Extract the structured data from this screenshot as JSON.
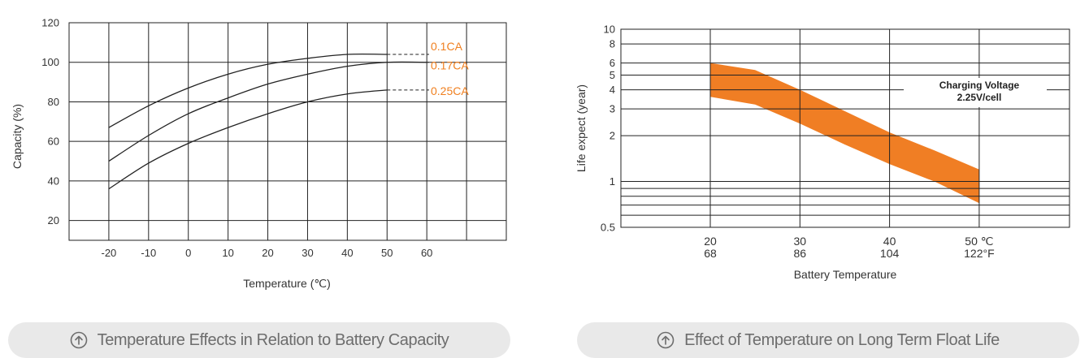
{
  "charts": [
    {
      "type": "line",
      "title": "",
      "xlabel": "Temperature (℃)",
      "ylabel": "Capacity (%)",
      "x_ticks": [
        -20,
        -10,
        0,
        10,
        20,
        30,
        40,
        50,
        60
      ],
      "y_ticks": [
        20,
        40,
        60,
        80,
        100,
        120
      ],
      "xlim": [
        -30,
        80
      ],
      "ylim": [
        10,
        120
      ],
      "grid": true,
      "series": [
        {
          "name": "0.1CA",
          "x": [
            -20,
            -10,
            0,
            10,
            20,
            30,
            40,
            50
          ],
          "values": [
            67,
            78,
            87,
            94,
            99,
            102,
            104,
            104
          ]
        },
        {
          "name": "0.17CA",
          "x": [
            -20,
            -10,
            0,
            10,
            20,
            30,
            40,
            50,
            60
          ],
          "values": [
            50,
            63,
            74,
            82,
            89,
            94,
            98,
            100,
            100
          ]
        },
        {
          "name": "0.25CA",
          "x": [
            -20,
            -10,
            0,
            10,
            20,
            30,
            40,
            50
          ],
          "values": [
            36,
            49,
            59,
            67,
            74,
            80,
            84,
            86
          ]
        }
      ],
      "label_color": "#f08020"
    },
    {
      "type": "area",
      "title": "",
      "xlabel": "Battery Temperature",
      "ylabel": "Life expect (year)",
      "y_scale": "log",
      "x_ticks": [
        {
          "c": "20",
          "f": "68"
        },
        {
          "c": "30",
          "f": "86"
        },
        {
          "c": "40",
          "f": "104"
        },
        {
          "c": "50 ℃",
          "f": "122°F"
        }
      ],
      "y_ticks": [
        "0.5",
        "1",
        "2",
        "3",
        "4",
        "5",
        "6",
        "8",
        "10"
      ],
      "ylim": [
        0.5,
        10
      ],
      "annotation": {
        "line1": "Charging Voltage",
        "line2": "2.25V/cell"
      },
      "band": {
        "x": [
          20,
          25,
          30,
          35,
          40,
          45,
          50
        ],
        "upper": [
          6.0,
          5.4,
          4.0,
          2.9,
          2.1,
          1.6,
          1.2
        ],
        "lower": [
          3.6,
          3.2,
          2.4,
          1.75,
          1.3,
          1.0,
          0.72
        ]
      },
      "fill_color": "#f07e24"
    }
  ],
  "captions": [
    {
      "text": "Temperature Effects in Relation to Battery Capacity",
      "icon": "arrow-up-circle-icon"
    },
    {
      "text": "Effect of Temperature on Long Term Float Life",
      "icon": "arrow-up-circle-icon"
    }
  ]
}
